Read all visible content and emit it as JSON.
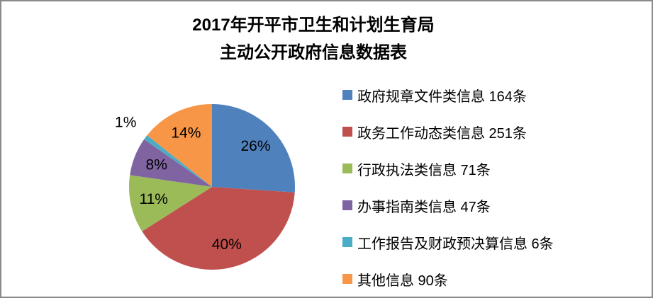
{
  "frame": {
    "background": "#ffffff",
    "border_color": "#8a8a8a"
  },
  "title": {
    "line1": "2017年开平市卫生和计划生育局",
    "line2": "主动公开政府信息数据表"
  },
  "chart_data": {
    "type": "pie",
    "title": "2017年开平市卫生和计划生育局 主动公开政府信息数据表",
    "categories": [
      "政府规章文件类信息",
      "政务工作动态类信息",
      "行政执法类信息",
      "办事指南类信息",
      "工作报告及财政预决算信息",
      "其他信息"
    ],
    "values": [
      164,
      251,
      71,
      47,
      6,
      90
    ],
    "unit": "条",
    "percent_labels": [
      "26%",
      "40%",
      "11%",
      "8%",
      "1%",
      "14%"
    ],
    "legend_labels": [
      "政府规章文件类信息 164条",
      "政务工作动态类信息 251条",
      "行政执法类信息 71条",
      "办事指南类信息 47条",
      "工作报告及财政预决算信息 6条",
      "其他信息 90条"
    ],
    "colors": [
      "#4F81BD",
      "#C0504D",
      "#9BBB59",
      "#8064A2",
      "#4BACC6",
      "#F79646"
    ],
    "legend_position": "right",
    "start_angle_deg": 0,
    "direction": "clockwise"
  }
}
